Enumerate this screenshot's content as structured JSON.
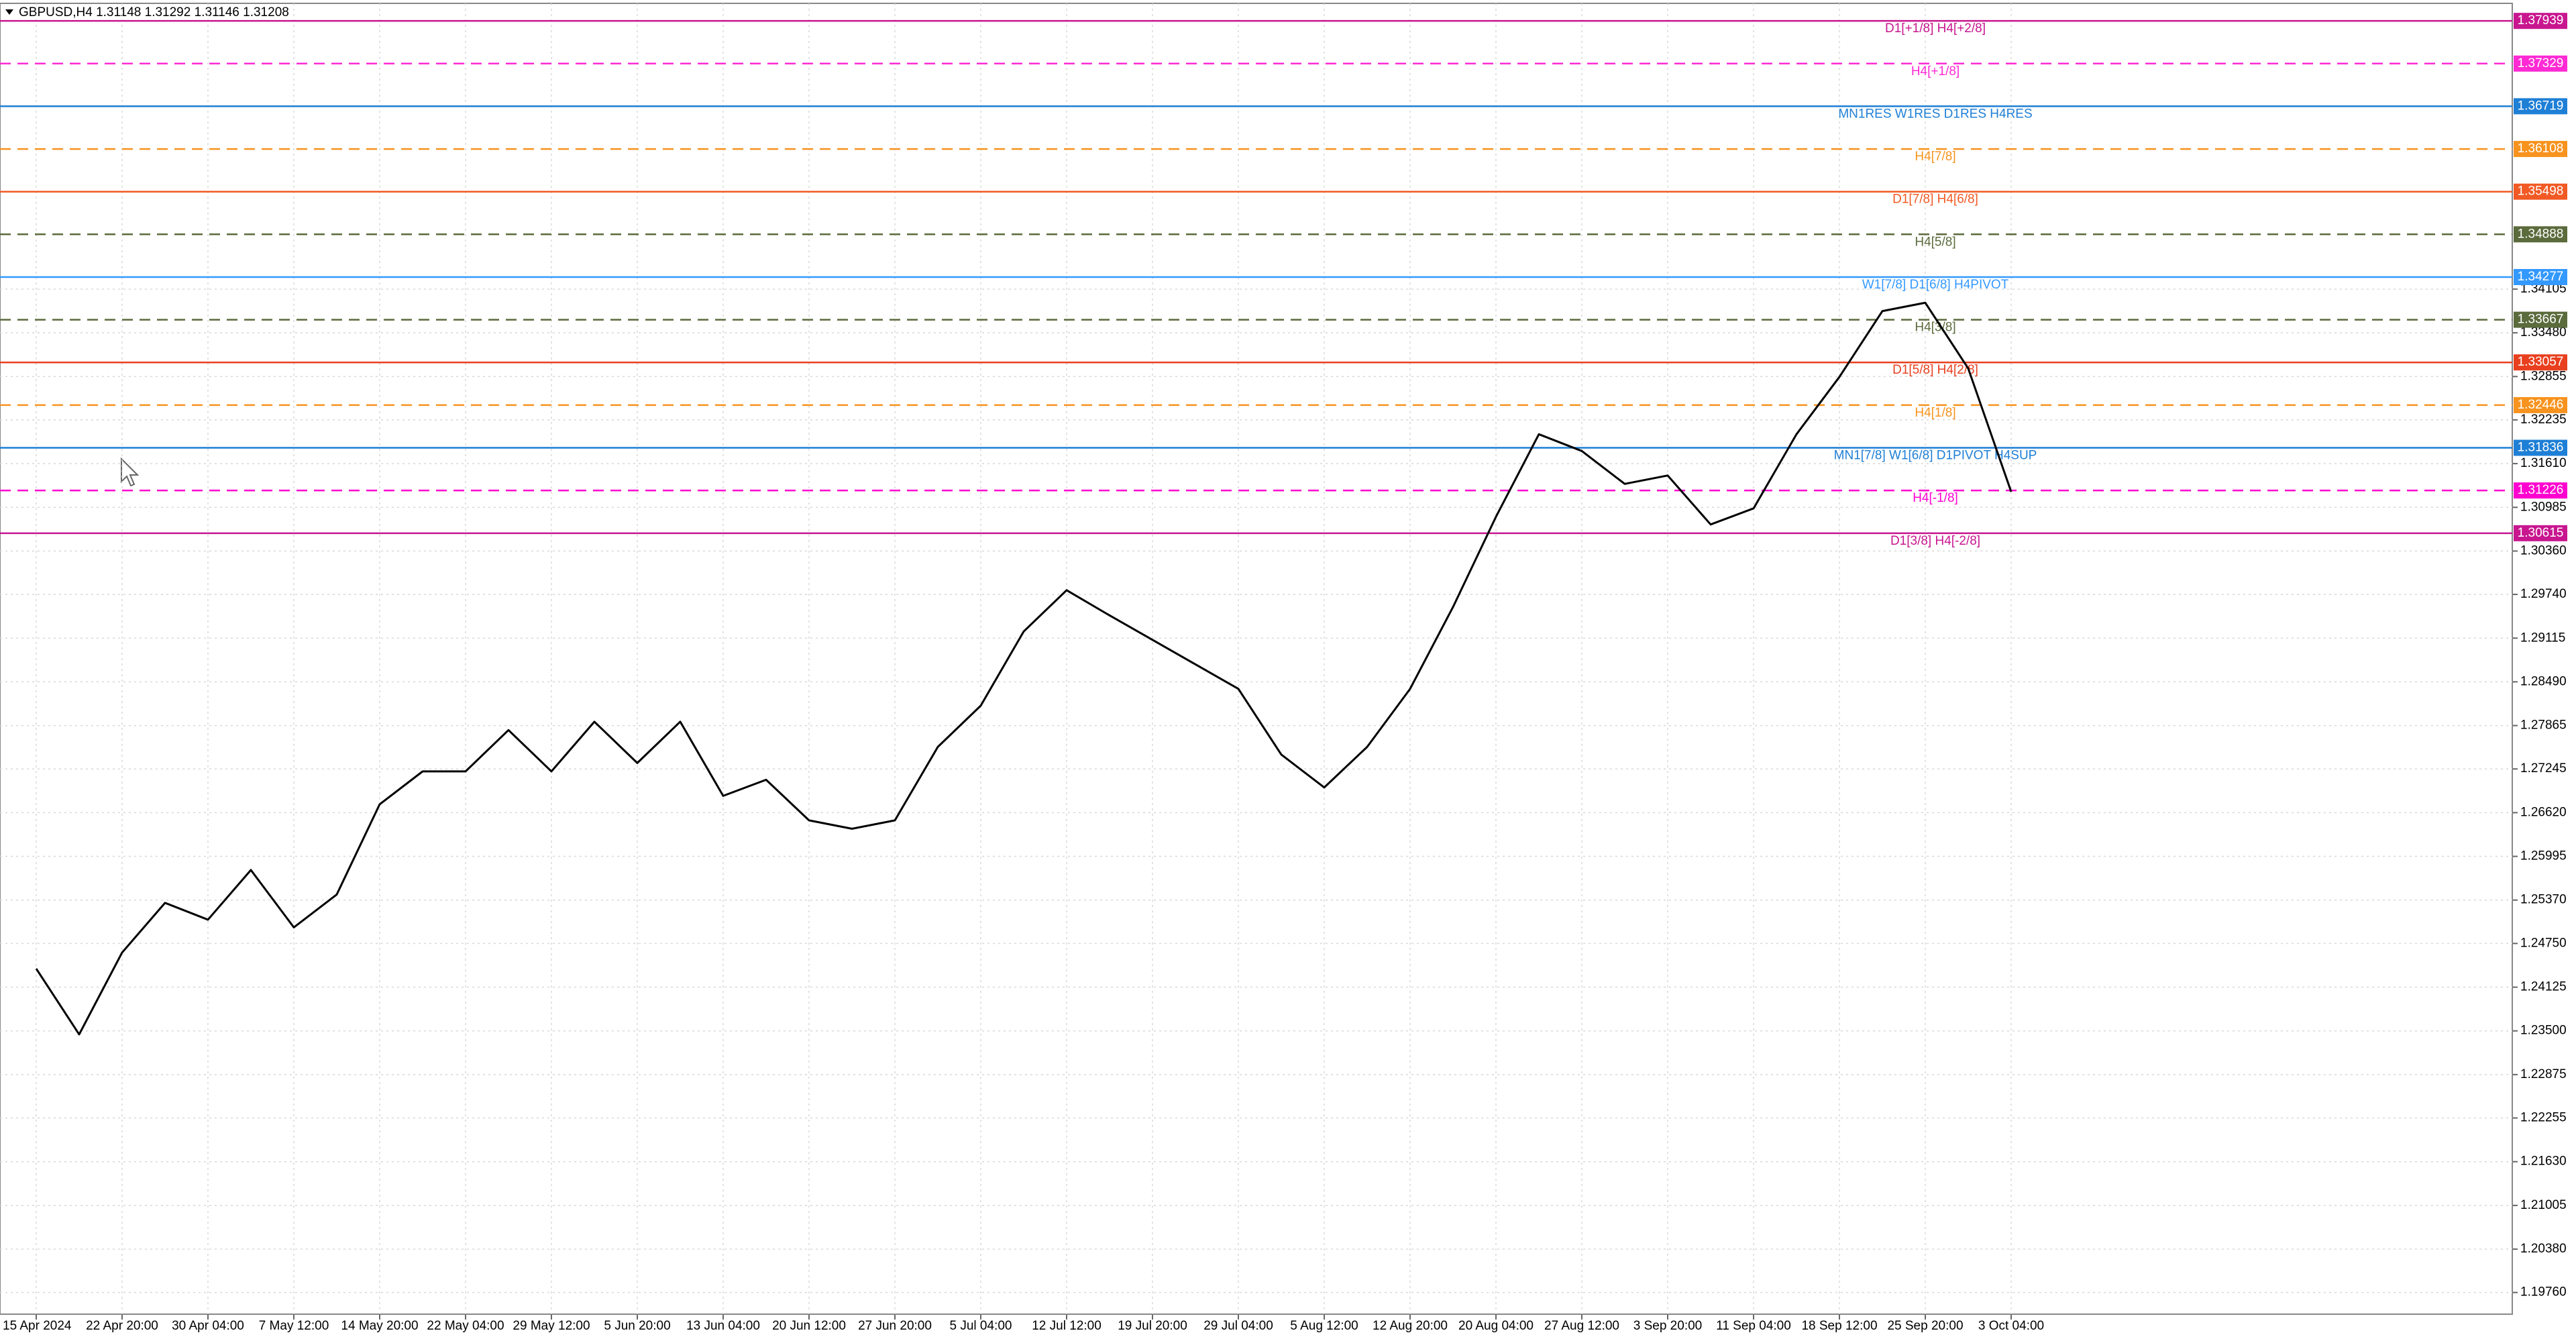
{
  "chart_data": {
    "type": "line",
    "title": "GBPUSD,H4  1.31148 1.31292 1.31146 1.31208",
    "categories": [
      "15 Apr 2024",
      null,
      "22 Apr 20:00",
      null,
      "30 Apr 04:00",
      null,
      "7 May 12:00",
      null,
      "14 May 20:00",
      null,
      "22 May 04:00",
      null,
      "29 May 12:00",
      null,
      "5 Jun 20:00",
      null,
      "13 Jun 04:00",
      null,
      "20 Jun 12:00",
      null,
      "27 Jun 20:00",
      null,
      "5 Jul 04:00",
      null,
      "12 Jul 12:00",
      null,
      "19 Jul 20:00",
      null,
      "29 Jul 04:00",
      null,
      "5 Aug 12:00",
      null,
      "12 Aug 20:00",
      null,
      "20 Aug 04:00",
      null,
      "27 Aug 12:00",
      null,
      "3 Sep 20:00",
      null,
      "11 Sep 04:00",
      null,
      "18 Sep 12:00",
      null,
      "25 Sep 20:00",
      null,
      "3 Oct 04:00"
    ],
    "series": [
      {
        "name": "GBPUSD",
        "color": "#000000",
        "values": [
          1.2439,
          1.2345,
          1.2462,
          1.2533,
          1.2509,
          1.258,
          1.2498,
          1.2545,
          1.2674,
          1.2721,
          1.2721,
          1.278,
          1.2721,
          1.2792,
          1.2733,
          1.2792,
          1.2686,
          1.2709,
          1.2651,
          1.2639,
          1.2651,
          1.2756,
          1.2815,
          1.2921,
          1.298,
          1.2944,
          1.2909,
          1.2874,
          1.2839,
          1.2745,
          1.2698,
          1.2756,
          1.2839,
          1.2956,
          1.3085,
          1.3203,
          1.3179,
          1.3132,
          1.3144,
          1.3074,
          1.3097,
          1.3203,
          1.3285,
          1.3379,
          1.3391,
          1.3297,
          1.31208
        ]
      }
    ],
    "ylim": [
      1.1945,
      1.3819
    ],
    "yticks": [
      {
        "value": 1.1976,
        "label": "1.19760"
      },
      {
        "value": 1.2038,
        "label": "1.20380"
      },
      1.21005,
      {
        "value": 1.2163,
        "label": "1.21630"
      },
      1.22255,
      1.22875,
      {
        "value": 1.235,
        "label": "1.23500"
      },
      1.24125,
      {
        "value": 1.2475,
        "label": "1.24750"
      },
      {
        "value": 1.2537,
        "label": "1.25370"
      },
      1.25995,
      {
        "value": 1.2662,
        "label": "1.26620"
      },
      1.27245,
      1.27865,
      {
        "value": 1.2849,
        "label": "1.28490"
      },
      1.29115,
      {
        "value": 1.2974,
        "label": "1.29740"
      },
      {
        "value": 1.3036,
        "label": "1.30360"
      },
      1.30985,
      {
        "value": 1.3161,
        "label": "1.31610"
      },
      1.32235,
      1.32855,
      {
        "value": 1.3348,
        "label": "1.33480"
      },
      1.34105
    ],
    "grid": true,
    "levels": [
      {
        "name": "D1[+1/8] H4[+2/8]",
        "value": 1.37939,
        "color": "#c8168f",
        "dashed": false
      },
      {
        "name": "H4[+1/8]",
        "value": 1.37329,
        "color": "#ff2ad4",
        "dashed": true
      },
      {
        "name": "MN1RES W1RES D1RES H4RES",
        "value": 1.36719,
        "color": "#1e7fd6",
        "dashed": false
      },
      {
        "name": "H4[7/8]",
        "value": 1.36108,
        "color": "#f7931e",
        "dashed": true
      },
      {
        "name": "D1[7/8] H4[6/8]",
        "value": 1.35498,
        "color": "#f15a24",
        "dashed": false
      },
      {
        "name": "H4[5/8]",
        "value": 1.34888,
        "color": "#5b6b3c",
        "dashed": true
      },
      {
        "name": "W1[7/8] D1[6/8] H4PIVOT",
        "value": 1.34277,
        "color": "#3399ff",
        "dashed": false
      },
      {
        "name": "H4[3/8]",
        "value": 1.33667,
        "color": "#5b6b3c",
        "dashed": true
      },
      {
        "name": "D1[5/8] H4[2/8]",
        "value": 1.33057,
        "color": "#e8401f",
        "dashed": false
      },
      {
        "name": "H4[1/8]",
        "value": 1.32446,
        "color": "#f7931e",
        "dashed": true
      },
      {
        "name": "MN1[7/8] W1[6/8] D1PIVOT H4SUP",
        "value": 1.31836,
        "color": "#1e7fd6",
        "dashed": false
      },
      {
        "name": "H4[-1/8]",
        "value": 1.31226,
        "color": "#ff00d0",
        "dashed": true
      },
      {
        "name": "D1[3/8] H4[-2/8]",
        "value": 1.30615,
        "color": "#c8168f",
        "dashed": false
      }
    ]
  }
}
